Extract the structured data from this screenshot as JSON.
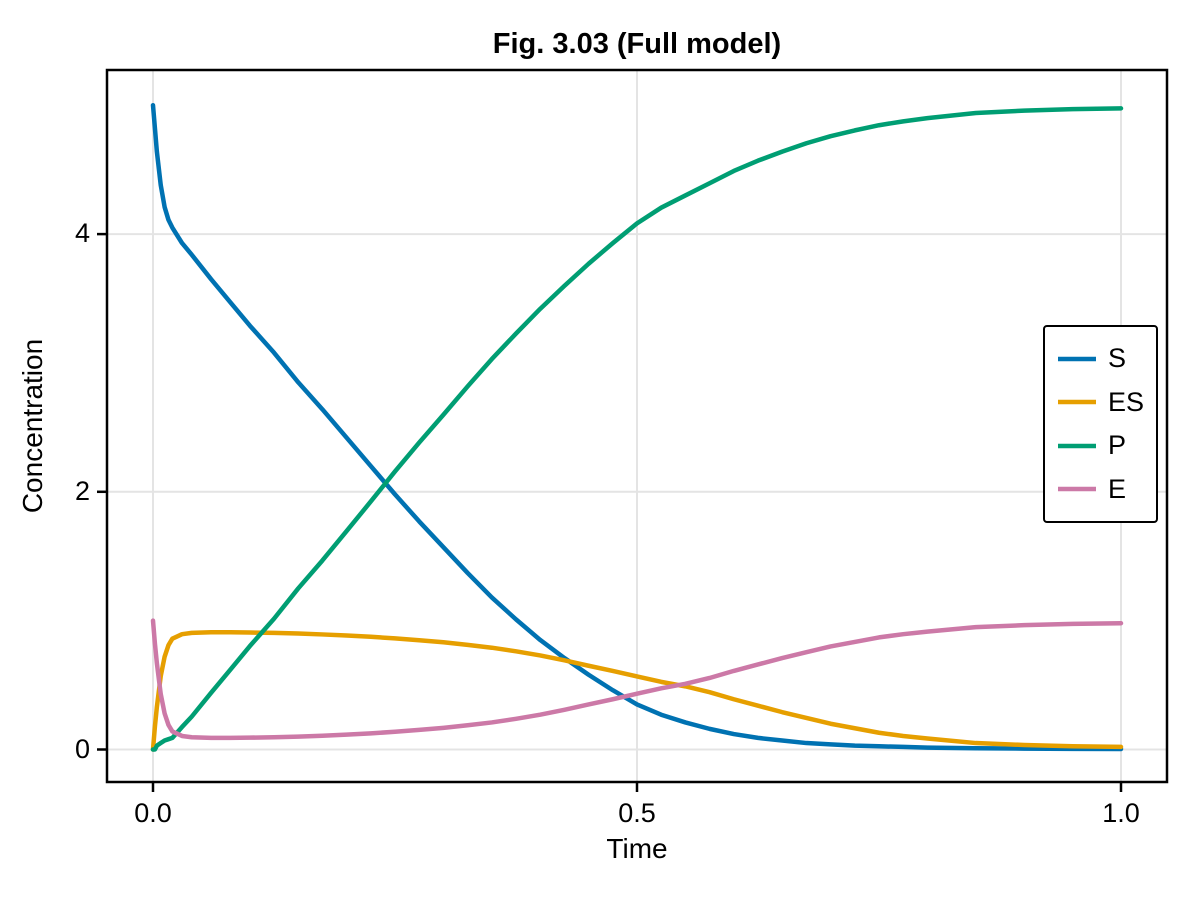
{
  "figure": {
    "background": "#ffffff",
    "text_color": "#000000"
  },
  "chart_data": {
    "type": "line",
    "title": "Fig. 3.03 (Full model)",
    "xlabel": "Time",
    "ylabel": "Concentration",
    "xlim": [
      -0.048,
      1.048
    ],
    "ylim": [
      -0.25,
      5.27
    ],
    "grid": true,
    "grid_color": "#e4e4e4",
    "axis_color": "#000000",
    "legend_position": "center-right inside, boxed",
    "xticks": [
      0.0,
      0.5,
      1.0
    ],
    "xtick_labels": [
      "0.0",
      "0.5",
      "1.0"
    ],
    "yticks": [
      0,
      2,
      4
    ],
    "ytick_labels": [
      "0",
      "2",
      "4"
    ],
    "x": [
      0,
      0.002,
      0.004,
      0.008,
      0.012,
      0.016,
      0.02,
      0.03,
      0.04,
      0.06,
      0.08,
      0.1,
      0.125,
      0.15,
      0.175,
      0.2,
      0.225,
      0.25,
      0.275,
      0.3,
      0.325,
      0.35,
      0.375,
      0.4,
      0.425,
      0.45,
      0.475,
      0.5,
      0.525,
      0.55,
      0.575,
      0.6,
      0.625,
      0.65,
      0.675,
      0.7,
      0.725,
      0.75,
      0.775,
      0.8,
      0.85,
      0.9,
      0.95,
      1.0
    ],
    "series": [
      {
        "name": "S",
        "color": "#0072B2",
        "values": [
          5.0,
          4.82,
          4.64,
          4.38,
          4.21,
          4.11,
          4.05,
          3.93,
          3.84,
          3.65,
          3.47,
          3.29,
          3.08,
          2.85,
          2.64,
          2.42,
          2.2,
          1.98,
          1.77,
          1.57,
          1.37,
          1.18,
          1.01,
          0.85,
          0.71,
          0.58,
          0.46,
          0.35,
          0.27,
          0.21,
          0.16,
          0.12,
          0.09,
          0.07,
          0.05,
          0.04,
          0.03,
          0.025,
          0.02,
          0.015,
          0.01,
          0.007,
          0.005,
          0.004
        ]
      },
      {
        "name": "ES",
        "color": "#E69F00",
        "values": [
          0,
          0.18,
          0.33,
          0.57,
          0.72,
          0.81,
          0.86,
          0.895,
          0.905,
          0.91,
          0.91,
          0.908,
          0.905,
          0.9,
          0.893,
          0.885,
          0.875,
          0.862,
          0.848,
          0.832,
          0.812,
          0.79,
          0.762,
          0.73,
          0.692,
          0.65,
          0.61,
          0.567,
          0.525,
          0.49,
          0.445,
          0.39,
          0.34,
          0.29,
          0.245,
          0.2,
          0.165,
          0.13,
          0.105,
          0.085,
          0.05,
          0.035,
          0.025,
          0.02
        ]
      },
      {
        "name": "P",
        "color": "#009E73",
        "values": [
          0,
          0.0,
          0.03,
          0.05,
          0.07,
          0.08,
          0.09,
          0.175,
          0.255,
          0.44,
          0.62,
          0.802,
          1.015,
          1.25,
          1.467,
          1.695,
          1.925,
          2.158,
          2.382,
          2.598,
          2.818,
          3.03,
          3.228,
          3.42,
          3.598,
          3.77,
          3.93,
          4.083,
          4.205,
          4.3,
          4.395,
          4.49,
          4.57,
          4.64,
          4.705,
          4.76,
          4.805,
          4.845,
          4.875,
          4.9,
          4.94,
          4.958,
          4.97,
          4.976
        ]
      },
      {
        "name": "E",
        "color": "#CC79A7",
        "values": [
          1.0,
          0.82,
          0.67,
          0.43,
          0.28,
          0.19,
          0.14,
          0.105,
          0.095,
          0.09,
          0.09,
          0.092,
          0.095,
          0.1,
          0.107,
          0.115,
          0.125,
          0.138,
          0.152,
          0.168,
          0.188,
          0.21,
          0.238,
          0.27,
          0.308,
          0.35,
          0.39,
          0.433,
          0.475,
          0.51,
          0.555,
          0.61,
          0.66,
          0.71,
          0.755,
          0.8,
          0.835,
          0.87,
          0.895,
          0.915,
          0.95,
          0.965,
          0.975,
          0.98
        ]
      }
    ]
  }
}
